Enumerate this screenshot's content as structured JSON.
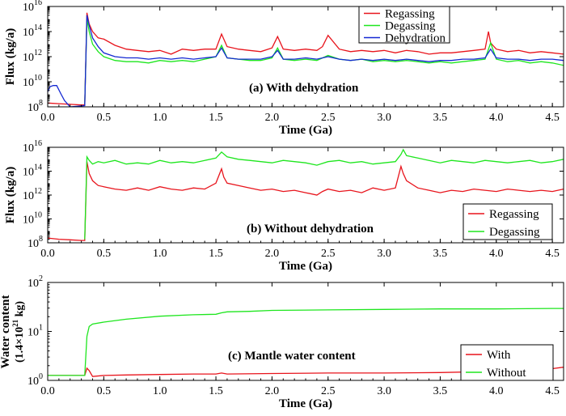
{
  "colors": {
    "regassing": "#e8141c",
    "degassing": "#1ee61e",
    "dehydration": "#1428d2",
    "axis": "#000000"
  },
  "chart_data": [
    {
      "type": "line",
      "annotation": "(a) With dehydration",
      "xlabel": "Time (Ga)",
      "ylabel": "Flux (kg/a)",
      "xlim": [
        0,
        4.6
      ],
      "ylim_log10": [
        8,
        16
      ],
      "yscale": "log",
      "x_ticks": [
        "0.0",
        "0.5",
        "1.0",
        "1.5",
        "2.0",
        "2.5",
        "3.0",
        "3.5",
        "4.0",
        "4.5"
      ],
      "y_ticks": [
        {
          "base": "10",
          "exp": "8",
          "v": 8
        },
        {
          "base": "10",
          "exp": "10",
          "v": 10
        },
        {
          "base": "10",
          "exp": "12",
          "v": 12
        },
        {
          "base": "10",
          "exp": "14",
          "v": 14
        },
        {
          "base": "10",
          "exp": "16",
          "v": 16
        }
      ],
      "legend_position": "top-right",
      "series": [
        {
          "name": "Regassing",
          "color": "regassing",
          "x": [
            0.0,
            0.1,
            0.2,
            0.3,
            0.33,
            0.35,
            0.37,
            0.4,
            0.45,
            0.5,
            0.6,
            0.7,
            0.8,
            0.9,
            1.0,
            1.1,
            1.2,
            1.3,
            1.4,
            1.5,
            1.55,
            1.6,
            1.7,
            1.8,
            1.9,
            2.0,
            2.05,
            2.1,
            2.2,
            2.3,
            2.4,
            2.45,
            2.5,
            2.6,
            2.7,
            2.8,
            2.9,
            3.0,
            3.1,
            3.2,
            3.3,
            3.4,
            3.5,
            3.6,
            3.7,
            3.8,
            3.9,
            3.93,
            3.95,
            4.0,
            4.1,
            4.2,
            4.3,
            4.4,
            4.5,
            4.6
          ],
          "y_log10": [
            8.3,
            8.25,
            8.2,
            8.15,
            8.15,
            15.5,
            14.6,
            14.0,
            13.5,
            13.4,
            12.9,
            12.6,
            12.5,
            12.4,
            12.5,
            12.2,
            12.6,
            12.5,
            12.6,
            12.6,
            13.8,
            12.8,
            12.6,
            12.5,
            12.4,
            12.7,
            13.6,
            12.6,
            12.5,
            12.6,
            12.5,
            12.8,
            13.7,
            12.6,
            12.4,
            12.5,
            12.4,
            12.5,
            12.3,
            12.5,
            12.4,
            12.2,
            12.3,
            12.3,
            12.4,
            12.5,
            12.6,
            14.0,
            13.1,
            12.6,
            12.4,
            12.5,
            12.3,
            12.4,
            12.3,
            12.2
          ]
        },
        {
          "name": "Degassing",
          "color": "degassing",
          "x": [
            0.33,
            0.35,
            0.37,
            0.4,
            0.45,
            0.5,
            0.6,
            0.7,
            0.8,
            0.9,
            1.0,
            1.1,
            1.2,
            1.3,
            1.4,
            1.5,
            1.55,
            1.6,
            1.7,
            1.8,
            1.9,
            2.0,
            2.05,
            2.1,
            2.2,
            2.3,
            2.4,
            2.5,
            2.6,
            2.7,
            2.8,
            2.9,
            3.0,
            3.1,
            3.2,
            3.3,
            3.4,
            3.5,
            3.6,
            3.7,
            3.8,
            3.9,
            3.95,
            4.0,
            4.1,
            4.2,
            4.3,
            4.4,
            4.5,
            4.6
          ],
          "y_log10": [
            8.2,
            15.0,
            14.0,
            13.0,
            12.4,
            12.0,
            11.7,
            11.6,
            11.6,
            11.5,
            11.7,
            11.6,
            11.7,
            11.6,
            11.8,
            12.0,
            12.9,
            11.9,
            11.8,
            11.7,
            11.7,
            11.9,
            12.7,
            11.8,
            11.7,
            11.8,
            11.7,
            12.1,
            11.8,
            11.7,
            11.8,
            11.6,
            11.7,
            11.6,
            11.7,
            11.6,
            11.5,
            11.6,
            11.5,
            11.6,
            11.7,
            11.8,
            13.1,
            11.8,
            11.6,
            11.7,
            11.5,
            11.6,
            11.5,
            11.3
          ]
        },
        {
          "name": "Dehydration",
          "color": "dehydration",
          "x": [
            0.0,
            0.02,
            0.05,
            0.08,
            0.12,
            0.15,
            0.2,
            0.33,
            0.35,
            0.37,
            0.4,
            0.45,
            0.5,
            0.6,
            0.7,
            0.8,
            0.9,
            1.0,
            1.1,
            1.2,
            1.3,
            1.4,
            1.5,
            1.55,
            1.6,
            1.7,
            1.8,
            1.9,
            2.0,
            2.05,
            2.1,
            2.2,
            2.3,
            2.4,
            2.5,
            2.6,
            2.7,
            2.8,
            2.9,
            3.0,
            3.1,
            3.2,
            3.3,
            3.4,
            3.5,
            3.6,
            3.7,
            3.8,
            3.9,
            3.95,
            4.0,
            4.1,
            4.2,
            4.3,
            4.4,
            4.5,
            4.6
          ],
          "y_log10": [
            9.2,
            9.6,
            9.7,
            9.7,
            9.0,
            8.5,
            8.0,
            8.1,
            15.3,
            14.5,
            13.5,
            12.8,
            12.3,
            12.0,
            11.9,
            11.9,
            11.8,
            11.9,
            11.8,
            11.9,
            11.8,
            11.9,
            12.0,
            12.7,
            11.9,
            11.8,
            11.8,
            11.8,
            12.0,
            12.5,
            11.8,
            11.8,
            11.9,
            11.8,
            12.0,
            11.8,
            11.7,
            11.8,
            11.7,
            11.8,
            11.7,
            11.8,
            11.7,
            11.6,
            11.7,
            11.7,
            11.8,
            11.8,
            11.9,
            12.6,
            11.9,
            11.8,
            11.8,
            11.7,
            11.8,
            11.8,
            11.7
          ]
        }
      ]
    },
    {
      "type": "line",
      "annotation": "(b) Without dehydration",
      "xlabel": "Time (Ga)",
      "ylabel": "Flux (kg/a)",
      "xlim": [
        0,
        4.6
      ],
      "ylim_log10": [
        8,
        16
      ],
      "yscale": "log",
      "x_ticks": [
        "0.0",
        "0.5",
        "1.0",
        "1.5",
        "2.0",
        "2.5",
        "3.0",
        "3.5",
        "4.0",
        "4.5"
      ],
      "y_ticks": [
        {
          "base": "10",
          "exp": "8",
          "v": 8
        },
        {
          "base": "10",
          "exp": "10",
          "v": 10
        },
        {
          "base": "10",
          "exp": "12",
          "v": 12
        },
        {
          "base": "10",
          "exp": "14",
          "v": 14
        },
        {
          "base": "10",
          "exp": "16",
          "v": 16
        }
      ],
      "legend_position": "bottom-right",
      "series": [
        {
          "name": "Regassing",
          "color": "regassing",
          "x": [
            0.0,
            0.1,
            0.2,
            0.3,
            0.33,
            0.35,
            0.37,
            0.4,
            0.45,
            0.5,
            0.6,
            0.7,
            0.8,
            0.9,
            1.0,
            1.1,
            1.2,
            1.3,
            1.4,
            1.5,
            1.55,
            1.57,
            1.6,
            1.7,
            1.8,
            1.9,
            2.0,
            2.1,
            2.2,
            2.3,
            2.4,
            2.45,
            2.5,
            2.6,
            2.7,
            2.8,
            2.9,
            3.0,
            3.1,
            3.15,
            3.17,
            3.2,
            3.3,
            3.4,
            3.5,
            3.6,
            3.7,
            3.8,
            3.9,
            4.0,
            4.1,
            4.2,
            4.3,
            4.4,
            4.5,
            4.6
          ],
          "y_log10": [
            8.4,
            8.3,
            8.25,
            8.2,
            8.2,
            14.8,
            13.8,
            13.2,
            12.8,
            12.7,
            12.5,
            12.4,
            12.6,
            12.4,
            12.7,
            12.5,
            12.4,
            12.6,
            12.5,
            13.0,
            14.2,
            13.5,
            13.0,
            12.8,
            12.6,
            12.4,
            12.5,
            12.3,
            12.4,
            12.2,
            12.0,
            12.3,
            12.5,
            12.3,
            12.4,
            12.2,
            12.6,
            12.4,
            12.6,
            14.4,
            13.8,
            13.2,
            12.6,
            12.4,
            12.2,
            12.4,
            12.3,
            12.5,
            12.4,
            12.3,
            12.5,
            12.4,
            12.3,
            12.4,
            12.3,
            12.5
          ]
        },
        {
          "name": "Degassing",
          "color": "degassing",
          "x": [
            0.33,
            0.35,
            0.37,
            0.4,
            0.45,
            0.5,
            0.6,
            0.7,
            0.8,
            0.9,
            1.0,
            1.1,
            1.2,
            1.3,
            1.4,
            1.5,
            1.55,
            1.6,
            1.7,
            1.8,
            1.9,
            2.0,
            2.1,
            2.2,
            2.3,
            2.4,
            2.5,
            2.6,
            2.7,
            2.8,
            2.9,
            3.0,
            3.1,
            3.15,
            3.17,
            3.2,
            3.3,
            3.4,
            3.5,
            3.6,
            3.7,
            3.8,
            3.9,
            4.0,
            4.1,
            4.2,
            4.3,
            4.4,
            4.5,
            4.6
          ],
          "y_log10": [
            8.3,
            15.2,
            14.9,
            14.6,
            14.8,
            14.7,
            14.9,
            14.6,
            14.7,
            14.6,
            14.9,
            14.7,
            14.8,
            14.7,
            14.9,
            15.1,
            15.6,
            15.2,
            15.0,
            14.9,
            14.8,
            14.7,
            14.9,
            14.8,
            14.7,
            14.5,
            14.8,
            14.9,
            14.7,
            14.8,
            14.6,
            14.7,
            14.8,
            15.4,
            15.8,
            15.3,
            15.1,
            14.9,
            14.7,
            14.9,
            14.8,
            14.7,
            14.9,
            14.8,
            14.7,
            14.8,
            14.9,
            14.7,
            14.8,
            15.0
          ]
        }
      ]
    },
    {
      "type": "line",
      "annotation": "(c) Mantle water content",
      "xlabel": "Time (Ga)",
      "ylabel_line1": "Water content",
      "ylabel_line2": "(1.4×10",
      "ylabel_sup": "21",
      "ylabel_line2_end": " kg)",
      "xlim": [
        0,
        4.6
      ],
      "ylim_log10": [
        0,
        2
      ],
      "yscale": "log",
      "x_ticks": [
        "0.0",
        "0.5",
        "1.0",
        "1.5",
        "2.0",
        "2.5",
        "3.0",
        "3.5",
        "4.0",
        "4.5"
      ],
      "y_ticks": [
        {
          "base": "10",
          "exp": "0",
          "v": 0
        },
        {
          "base": "10",
          "exp": "1",
          "v": 1
        },
        {
          "base": "10",
          "exp": "2",
          "v": 2
        }
      ],
      "legend_position": "right",
      "series": [
        {
          "name": "With",
          "color": "regassing",
          "x": [
            0.0,
            0.1,
            0.2,
            0.3,
            0.33,
            0.35,
            0.37,
            0.4,
            0.5,
            0.7,
            1.0,
            1.3,
            1.5,
            1.55,
            1.6,
            2.0,
            2.5,
            3.0,
            3.5,
            3.9,
            4.0,
            4.1,
            4.3,
            4.5,
            4.6
          ],
          "y_log10": [
            0.1,
            0.1,
            0.1,
            0.1,
            0.1,
            0.25,
            0.2,
            0.08,
            0.1,
            0.11,
            0.12,
            0.13,
            0.13,
            0.15,
            0.13,
            0.14,
            0.15,
            0.15,
            0.16,
            0.18,
            0.2,
            0.18,
            0.2,
            0.24,
            0.27
          ]
        },
        {
          "name": "Without",
          "color": "degassing",
          "x": [
            0.0,
            0.1,
            0.2,
            0.3,
            0.33,
            0.35,
            0.37,
            0.4,
            0.5,
            0.7,
            1.0,
            1.3,
            1.5,
            1.55,
            1.6,
            1.8,
            2.0,
            2.5,
            3.0,
            3.5,
            4.0,
            4.5,
            4.6
          ],
          "y_log10": [
            0.1,
            0.1,
            0.1,
            0.1,
            0.1,
            0.9,
            1.1,
            1.15,
            1.19,
            1.25,
            1.31,
            1.34,
            1.35,
            1.38,
            1.4,
            1.41,
            1.43,
            1.44,
            1.45,
            1.46,
            1.46,
            1.47,
            1.47
          ]
        }
      ]
    }
  ]
}
